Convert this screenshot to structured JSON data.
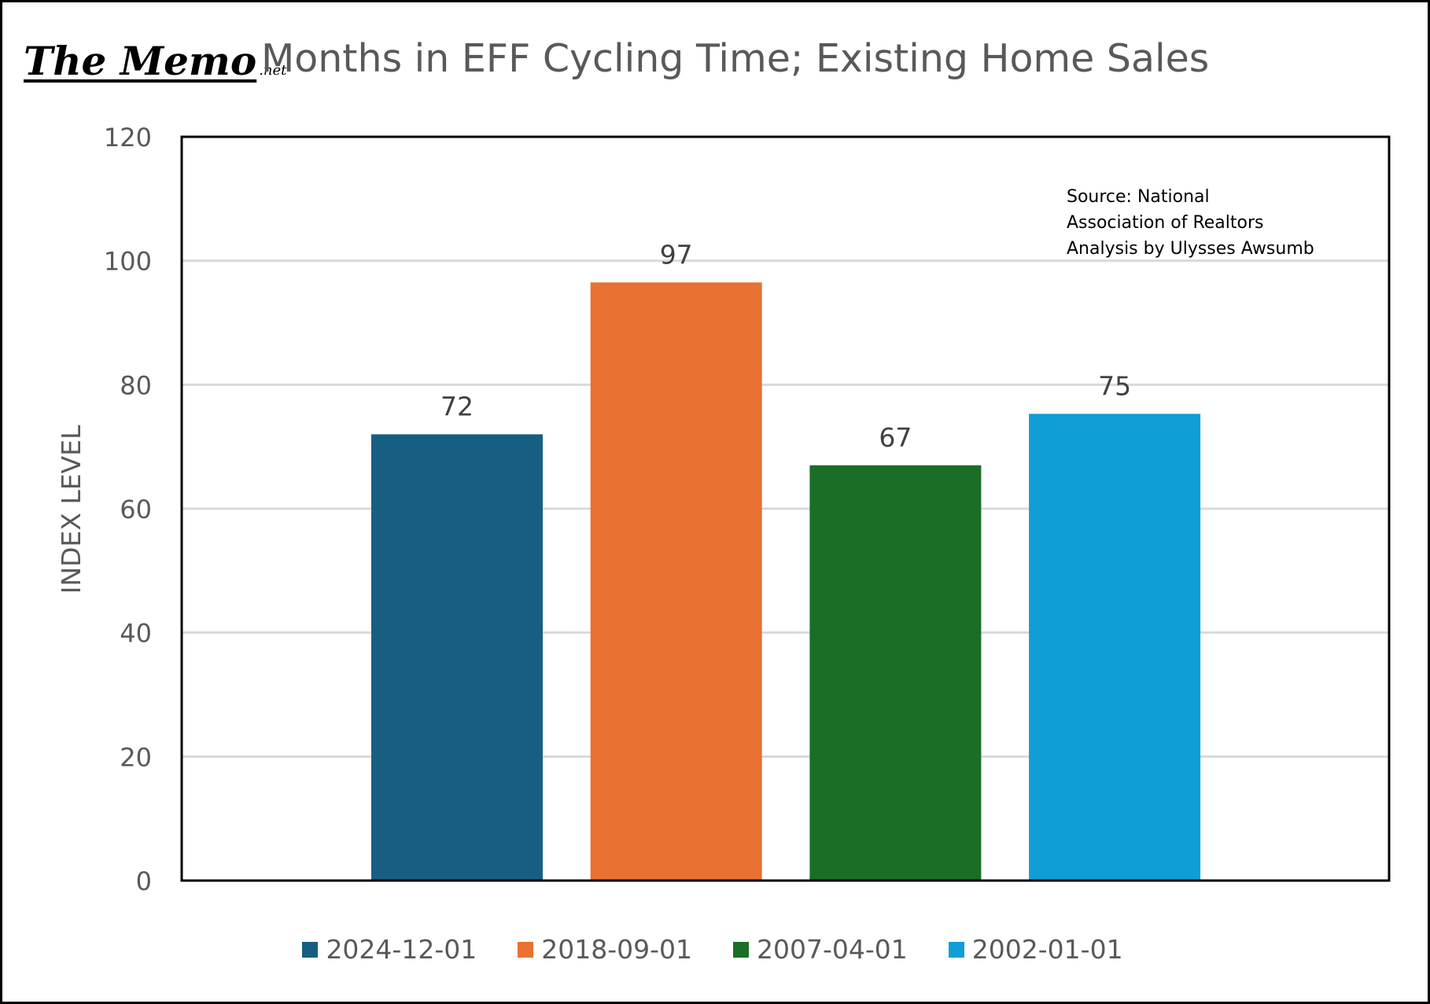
{
  "logo": {
    "main": "The Memo",
    "suffix": ".net"
  },
  "chart_data": {
    "type": "bar",
    "title": "Months in EFF Cycling Time; Existing Home Sales",
    "xlabel": "",
    "ylabel": "INDEX LEVEL",
    "ylim": [
      0,
      120
    ],
    "yticks": [
      0,
      20,
      40,
      60,
      80,
      100,
      120
    ],
    "grid": true,
    "legend_position": "bottom",
    "categories": [
      "2024-12-01",
      "2018-09-01",
      "2007-04-01",
      "2002-01-01"
    ],
    "values": [
      72,
      96.5,
      67,
      75.3
    ],
    "data_labels": [
      "72",
      "97",
      "67",
      "75"
    ],
    "colors": [
      "#175f82",
      "#e97132",
      "#1b6e25",
      "#0f9ed5"
    ],
    "annotation": [
      "Source: National",
      "Association of Realtors",
      "Analysis by Ulysses Awsumb"
    ]
  }
}
